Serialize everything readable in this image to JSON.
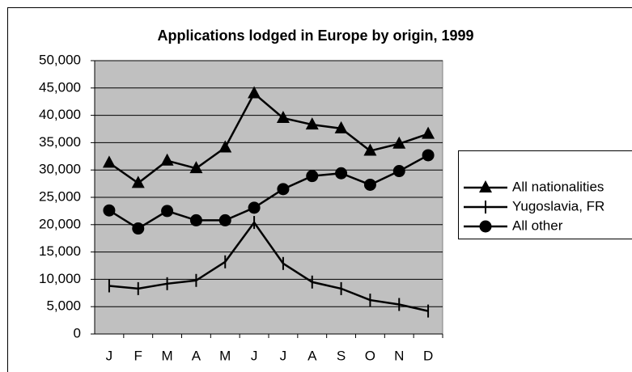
{
  "chart_data": {
    "type": "line",
    "title": "Applications lodged in Europe by origin, 1999",
    "categories": [
      "J",
      "F",
      "M",
      "A",
      "M",
      "J",
      "J",
      "A",
      "S",
      "O",
      "N",
      "D"
    ],
    "series": [
      {
        "name": "All nationalities",
        "color": "#000000",
        "marker": "triangle",
        "values": [
          31300,
          27600,
          31700,
          30300,
          34100,
          44000,
          39500,
          38300,
          37600,
          33500,
          34800,
          36600
        ]
      },
      {
        "name": "Yugoslavia, FR",
        "color": "#000000",
        "marker": "plus",
        "values": [
          8800,
          8300,
          9200,
          9800,
          13200,
          20400,
          12900,
          9500,
          8300,
          6200,
          5400,
          4200
        ]
      },
      {
        "name": "All other",
        "color": "#000000",
        "marker": "circle",
        "values": [
          22600,
          19300,
          22500,
          20800,
          20800,
          23100,
          26500,
          28900,
          29400,
          27300,
          29800,
          32700
        ]
      }
    ],
    "ylim": [
      0,
      50000
    ],
    "yticks": [
      0,
      {
        "value": 5000,
        "label": "5,000"
      },
      {
        "value": 10000,
        "label": "10,000"
      },
      {
        "value": 15000,
        "label": "15,000"
      },
      {
        "value": 20000,
        "label": "20,000"
      },
      {
        "value": 25000,
        "label": "25,000"
      },
      {
        "value": 30000,
        "label": "30,000"
      },
      {
        "value": 35000,
        "label": "35,000"
      },
      {
        "value": 40000,
        "label": "40,000"
      },
      {
        "value": 45000,
        "label": "45,000"
      },
      {
        "value": 50000,
        "label": "50,000"
      }
    ],
    "grid": true,
    "plot_background": "#c0c0c0",
    "legend": "right"
  }
}
